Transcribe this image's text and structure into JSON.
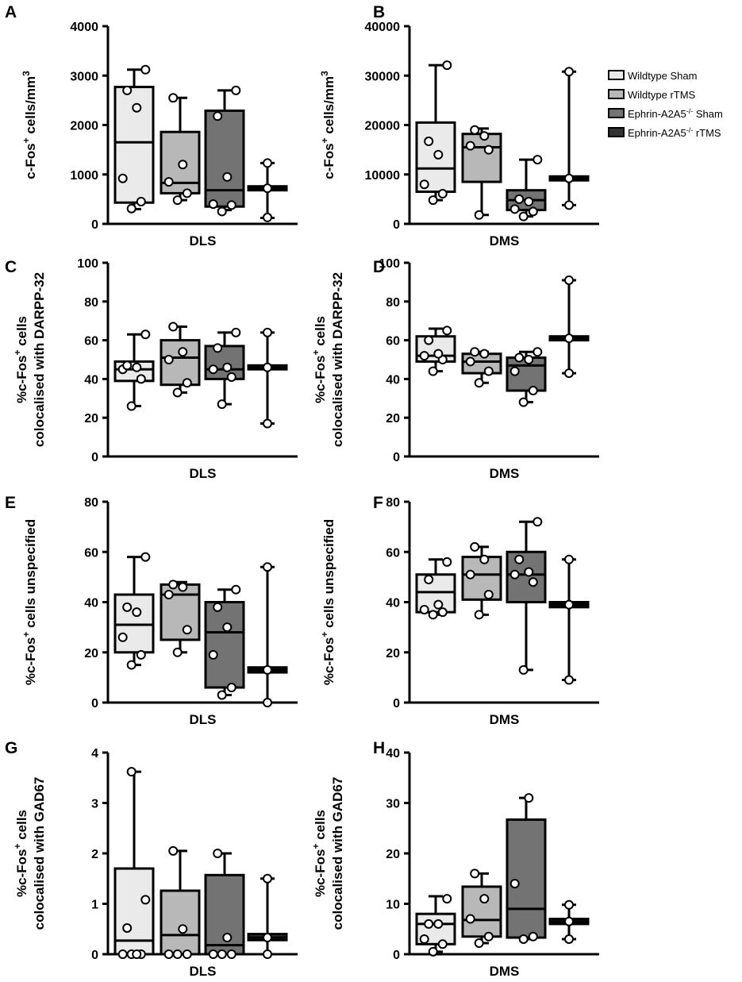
{
  "groups": [
    {
      "name": "Wildtype Sham",
      "color": "#eaeaea"
    },
    {
      "name": "Wildtype rTMS",
      "color": "#b8b8b8"
    },
    {
      "name": "Ephrin-A2A5",
      "name_sup": "-/-",
      "name_suffix": " Sham",
      "color": "#737373"
    },
    {
      "name": "Ephrin-A2A5",
      "name_sup": "-/-",
      "name_suffix": " rTMS",
      "color": "#333333"
    }
  ],
  "chart_data": [
    {
      "panel": "A",
      "type": "box",
      "ylabel_lines": [
        {
          "pre": "c-Fos",
          "sup": "+",
          "post": " cells/mm",
          "sup2": "3"
        }
      ],
      "xlabel": "DLS",
      "ylim": [
        0,
        4000
      ],
      "yticks": [
        0,
        1000,
        2000,
        3000,
        4000
      ],
      "boxes": [
        {
          "min": 300,
          "q1": 430,
          "median": 1650,
          "q3": 2770,
          "max": 3120,
          "points": [
            310,
            450,
            920,
            2350,
            2700,
            3120
          ]
        },
        {
          "min": 480,
          "q1": 620,
          "median": 830,
          "q3": 1860,
          "max": 2550,
          "points": [
            480,
            620,
            850,
            1200,
            2550
          ]
        },
        {
          "min": 280,
          "q1": 350,
          "median": 680,
          "q3": 2290,
          "max": 2700,
          "points": [
            250,
            380,
            400,
            950,
            2180,
            2700
          ]
        },
        {
          "min": 120,
          "q1": 680,
          "median": 720,
          "q3": 760,
          "max": 1230,
          "points": [
            130,
            720,
            1230
          ]
        }
      ]
    },
    {
      "panel": "B",
      "type": "box",
      "ylabel_lines": [
        {
          "pre": "c-Fos",
          "sup": "+",
          "post": " cells/mm",
          "sup2": "3"
        }
      ],
      "xlabel": "DMS",
      "ylim": [
        0,
        40000
      ],
      "yticks": [
        0,
        10000,
        20000,
        30000,
        40000
      ],
      "boxes": [
        {
          "min": 4800,
          "q1": 6500,
          "median": 11200,
          "q3": 20500,
          "max": 32100,
          "points": [
            4800,
            6100,
            8000,
            14000,
            16700,
            32100
          ]
        },
        {
          "min": 1800,
          "q1": 8500,
          "median": 15500,
          "q3": 18200,
          "max": 19300,
          "points": [
            1800,
            15000,
            15800,
            17800,
            19000
          ]
        },
        {
          "min": 1500,
          "q1": 2800,
          "median": 4800,
          "q3": 6800,
          "max": 13000,
          "points": [
            1500,
            2500,
            3000,
            4500,
            5000,
            13000
          ]
        },
        {
          "min": 3800,
          "q1": 8800,
          "median": 9200,
          "q3": 9600,
          "max": 30800,
          "points": [
            3800,
            9200,
            30800
          ]
        }
      ]
    },
    {
      "panel": "C",
      "type": "box",
      "ylabel_lines": [
        {
          "pre": "%c-Fos",
          "sup": "+",
          "post": " cells"
        },
        {
          "pre": "colocalised with DARPP-32"
        }
      ],
      "xlabel": "DLS",
      "ylim": [
        0,
        100
      ],
      "yticks": [
        0,
        20,
        40,
        60,
        80,
        100
      ],
      "boxes": [
        {
          "min": 26,
          "q1": 39,
          "median": 45,
          "q3": 49,
          "max": 63,
          "points": [
            26,
            40,
            45,
            46,
            47,
            63
          ]
        },
        {
          "min": 33,
          "q1": 37,
          "median": 51,
          "q3": 60,
          "max": 67,
          "points": [
            33,
            38,
            50,
            54,
            67
          ]
        },
        {
          "min": 27,
          "q1": 40,
          "median": 45,
          "q3": 57,
          "max": 64,
          "points": [
            27,
            41,
            45,
            46,
            56,
            64
          ]
        },
        {
          "min": 17,
          "q1": 45,
          "median": 46,
          "q3": 47,
          "max": 64,
          "points": [
            17,
            46,
            64
          ]
        }
      ]
    },
    {
      "panel": "D",
      "type": "box",
      "ylabel_lines": [
        {
          "pre": "%c-Fos",
          "sup": "+",
          "post": " cells"
        },
        {
          "pre": "colocalised with DARPP-32"
        }
      ],
      "xlabel": "DMS",
      "ylim": [
        0,
        100
      ],
      "yticks": [
        0,
        20,
        40,
        60,
        80,
        100
      ],
      "boxes": [
        {
          "min": 44,
          "q1": 49,
          "median": 52,
          "q3": 62,
          "max": 66,
          "points": [
            44,
            50,
            52,
            53,
            60,
            65
          ]
        },
        {
          "min": 38,
          "q1": 43,
          "median": 49,
          "q3": 53,
          "max": 54,
          "points": [
            38,
            44,
            49,
            53,
            54
          ]
        },
        {
          "min": 28,
          "q1": 34,
          "median": 47,
          "q3": 51,
          "max": 54,
          "points": [
            28,
            34,
            44,
            50,
            51,
            54
          ]
        },
        {
          "min": 43,
          "q1": 60,
          "median": 61,
          "q3": 62,
          "max": 91,
          "points": [
            43,
            61,
            91
          ]
        }
      ]
    },
    {
      "panel": "E",
      "type": "box",
      "ylabel_lines": [
        {
          "pre": "%c-Fos",
          "sup": "+",
          "post": " cells unspecified"
        }
      ],
      "xlabel": "DLS",
      "ylim": [
        0,
        80
      ],
      "yticks": [
        0,
        20,
        40,
        60,
        80
      ],
      "boxes": [
        {
          "min": 15,
          "q1": 20,
          "median": 31,
          "q3": 43,
          "max": 58,
          "points": [
            15,
            19,
            26,
            36,
            38,
            58
          ]
        },
        {
          "min": 20,
          "q1": 25,
          "median": 43,
          "q3": 47,
          "max": 48,
          "points": [
            20,
            29,
            43,
            46,
            47
          ]
        },
        {
          "min": 3,
          "q1": 6,
          "median": 28,
          "q3": 40,
          "max": 45,
          "points": [
            3,
            6,
            19,
            30,
            38,
            45
          ]
        },
        {
          "min": 0,
          "q1": 12,
          "median": 13,
          "q3": 14,
          "max": 54,
          "points": [
            0,
            13,
            54
          ]
        }
      ]
    },
    {
      "panel": "F",
      "type": "box",
      "ylabel_lines": [
        {
          "pre": "%c-Fos",
          "sup": "+",
          "post": " cells unspecified"
        }
      ],
      "xlabel": "DMS",
      "ylim": [
        0,
        80
      ],
      "yticks": [
        0,
        20,
        40,
        60,
        80
      ],
      "boxes": [
        {
          "min": 35,
          "q1": 36,
          "median": 44,
          "q3": 51,
          "max": 57,
          "points": [
            35,
            36,
            37,
            39,
            49,
            56
          ]
        },
        {
          "min": 35,
          "q1": 41,
          "median": 51,
          "q3": 58,
          "max": 62,
          "points": [
            35,
            43,
            51,
            57,
            62
          ]
        },
        {
          "min": 13,
          "q1": 40,
          "median": 51,
          "q3": 60,
          "max": 72,
          "points": [
            13,
            48,
            51,
            52,
            57,
            72
          ]
        },
        {
          "min": 9,
          "q1": 38,
          "median": 39,
          "q3": 40,
          "max": 57,
          "points": [
            9,
            39,
            57
          ]
        }
      ]
    },
    {
      "panel": "G",
      "type": "box",
      "ylabel_lines": [
        {
          "pre": "%c-Fos",
          "sup": "+",
          "post": " cells"
        },
        {
          "pre": "colocalised with GAD67"
        }
      ],
      "xlabel": "DLS",
      "ylim": [
        0,
        4
      ],
      "yticks": [
        0,
        1,
        2,
        3,
        4
      ],
      "boxes": [
        {
          "min": 0,
          "q1": 0,
          "median": 0.27,
          "q3": 1.7,
          "max": 3.62,
          "points": [
            0,
            0,
            0,
            0,
            0.52,
            1.08,
            3.62
          ]
        },
        {
          "min": 0,
          "q1": 0,
          "median": 0.38,
          "q3": 1.26,
          "max": 2.05,
          "points": [
            0,
            0,
            0,
            0.5,
            2.05
          ]
        },
        {
          "min": 0,
          "q1": 0,
          "median": 0.18,
          "q3": 1.57,
          "max": 2.0,
          "points": [
            0,
            0,
            0,
            0.33,
            2.0
          ]
        },
        {
          "min": 0,
          "q1": 0.28,
          "median": 0.33,
          "q3": 0.4,
          "max": 1.5,
          "points": [
            0,
            0.33,
            1.5
          ]
        }
      ]
    },
    {
      "panel": "H",
      "type": "box",
      "ylabel_lines": [
        {
          "pre": "%c-Fos",
          "sup": "+",
          "post": " cells"
        },
        {
          "pre": "colocalised with GAD67"
        }
      ],
      "xlabel": "DMS",
      "ylim": [
        0,
        40
      ],
      "yticks": [
        0,
        10,
        20,
        30,
        40
      ],
      "boxes": [
        {
          "min": 0.5,
          "q1": 2,
          "median": 6,
          "q3": 8,
          "max": 11.5,
          "points": [
            0.5,
            2,
            3,
            6,
            6,
            11
          ]
        },
        {
          "min": 2.2,
          "q1": 3.5,
          "median": 6.8,
          "q3": 13.4,
          "max": 16,
          "points": [
            2.2,
            3.5,
            7,
            11,
            16
          ]
        },
        {
          "min": 3,
          "q1": 3.3,
          "median": 9,
          "q3": 26.7,
          "max": 31,
          "points": [
            3,
            3.5,
            14,
            31
          ]
        },
        {
          "min": 3,
          "q1": 6,
          "median": 6.5,
          "q3": 7,
          "max": 9.8,
          "points": [
            3,
            6.5,
            9.8
          ]
        }
      ]
    }
  ]
}
